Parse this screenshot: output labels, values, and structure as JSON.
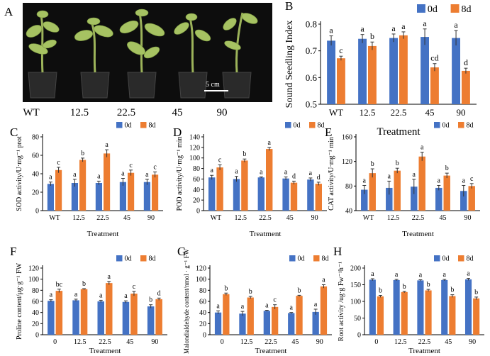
{
  "panel_a": {
    "letter": "A",
    "labels": [
      "WT",
      "12.5",
      "22.5",
      "45",
      "90"
    ],
    "scale": "5 cm"
  },
  "colors": {
    "d0": "#4472c4",
    "d8": "#ed7d31"
  },
  "chart_data": [
    {
      "id": "B",
      "type": "bar",
      "title": "",
      "xlabel": "Treatment",
      "ylabel": "Sound Seedling Index",
      "categories": [
        "WT",
        "12.5",
        "22.5",
        "45",
        "90"
      ],
      "ylim": [
        0.5,
        0.8
      ],
      "yticks": [
        "0.5",
        "0.6",
        "0.7",
        "0.8"
      ],
      "legend": [
        "0d",
        "8d"
      ],
      "legend_position": "top-right",
      "series": [
        {
          "name": "0d",
          "values": [
            0.738,
            0.745,
            0.748,
            0.752,
            0.748
          ],
          "errors": [
            0.018,
            0.016,
            0.015,
            0.03,
            0.028
          ],
          "labels": [
            "a",
            "a",
            "a",
            "a",
            "a"
          ]
        },
        {
          "name": "8d",
          "values": [
            0.672,
            0.718,
            0.758,
            0.638,
            0.625
          ],
          "errors": [
            0.008,
            0.015,
            0.013,
            0.014,
            0.01
          ],
          "labels": [
            "c",
            "b",
            "a",
            "cd",
            "d"
          ]
        }
      ]
    },
    {
      "id": "C",
      "type": "bar",
      "title": "",
      "xlabel": "Treatment",
      "ylabel": "SOD activity/U·mg⁻¹ prot",
      "categories": [
        "WT",
        "12.5",
        "22.5",
        "45",
        "90"
      ],
      "ylim": [
        0,
        80
      ],
      "yticks": [
        "0",
        "20",
        "40",
        "60",
        "80"
      ],
      "legend": [
        "0d",
        "8d"
      ],
      "legend_position": "top-right",
      "series": [
        {
          "name": "0d",
          "values": [
            29,
            30,
            30,
            31,
            31
          ],
          "errors": [
            2,
            4,
            2,
            4,
            3
          ],
          "labels": [
            "a",
            "a",
            "a",
            "a",
            "a"
          ]
        },
        {
          "name": "8d",
          "values": [
            44,
            55,
            62,
            41,
            39
          ],
          "errors": [
            3,
            2,
            4,
            3,
            3
          ],
          "labels": [
            "c",
            "b",
            "a",
            "c",
            "c"
          ]
        }
      ]
    },
    {
      "id": "D",
      "type": "bar",
      "title": "",
      "xlabel": "Treatment",
      "ylabel": "POD activity/U·mg⁻¹ min",
      "categories": [
        "WT",
        "12.5",
        "22.5",
        "45",
        "90"
      ],
      "ylim": [
        0,
        140
      ],
      "yticks": [
        "0",
        "20",
        "40",
        "60",
        "80",
        "100",
        "120",
        "140"
      ],
      "legend": [
        "0d",
        "8d"
      ],
      "legend_position": "top-right",
      "series": [
        {
          "name": "0d",
          "values": [
            63,
            60,
            63,
            61,
            59
          ],
          "errors": [
            4,
            5,
            1,
            3,
            3
          ],
          "labels": [
            "a",
            "a",
            "a",
            "a",
            "a"
          ]
        },
        {
          "name": "8d",
          "values": [
            82,
            95,
            117,
            53,
            51
          ],
          "errors": [
            5,
            3,
            3,
            3,
            3
          ],
          "labels": [
            "c",
            "b",
            "a",
            "d",
            "d"
          ]
        }
      ]
    },
    {
      "id": "E",
      "type": "bar",
      "title": "",
      "xlabel": "Treatment",
      "ylabel": "CAT activity/U·mg⁻¹ min",
      "categories": [
        "WT",
        "12.5",
        "22.5",
        "45",
        "90"
      ],
      "ylim": [
        40,
        160
      ],
      "yticks": [
        "40",
        "80",
        "120",
        "160"
      ],
      "legend": [
        "0d",
        "8d"
      ],
      "legend_position": "top-right",
      "series": [
        {
          "name": "0d",
          "values": [
            74,
            77,
            79,
            77,
            72
          ],
          "errors": [
            7,
            11,
            12,
            4,
            9
          ],
          "labels": [
            "a",
            "a",
            "a",
            "a",
            "a"
          ]
        },
        {
          "name": "8d",
          "values": [
            101,
            105,
            128,
            97,
            80
          ],
          "errors": [
            7,
            4,
            7,
            4,
            4
          ],
          "labels": [
            "b",
            "b",
            "a",
            "b",
            "c"
          ]
        }
      ]
    },
    {
      "id": "F",
      "type": "bar",
      "title": "",
      "xlabel": "Treatment",
      "ylabel": "Proline content/μg·g⁻¹ FW",
      "categories": [
        "0",
        "12.5",
        "22.5",
        "45",
        "90"
      ],
      "ylim": [
        0,
        120
      ],
      "yticks": [
        "0",
        "20",
        "40",
        "60",
        "80",
        "100",
        "120"
      ],
      "legend": [
        "0d",
        "8d"
      ],
      "legend_position": "top-right",
      "series": [
        {
          "name": "0d",
          "values": [
            61,
            62,
            60,
            59,
            51
          ],
          "errors": [
            2,
            2,
            2,
            2,
            3
          ],
          "labels": [
            "a",
            "a",
            "a",
            "a",
            "b"
          ]
        },
        {
          "name": "8d",
          "values": [
            79,
            82,
            93,
            74,
            64
          ],
          "errors": [
            3,
            1,
            3,
            4,
            2
          ],
          "labels": [
            "bc",
            "b",
            "a",
            "c",
            "d"
          ]
        }
      ]
    },
    {
      "id": "G",
      "type": "bar",
      "title": "",
      "xlabel": "Treatment",
      "ylabel": "Malondialdehyde content/nmol · g⁻¹ FW",
      "categories": [
        "0",
        "12.5",
        "22.5",
        "45",
        "90"
      ],
      "ylim": [
        0,
        120
      ],
      "yticks": [
        "0",
        "20",
        "40",
        "60",
        "80",
        "100",
        "120"
      ],
      "legend": [
        "0d",
        "8d"
      ],
      "legend_position": "top-right",
      "series": [
        {
          "name": "0d",
          "values": [
            40,
            38,
            43,
            39,
            41
          ],
          "errors": [
            3,
            4,
            1,
            1,
            5
          ],
          "labels": [
            "a",
            "a",
            "a",
            "a",
            "a"
          ]
        },
        {
          "name": "8d",
          "values": [
            73,
            67,
            50,
            70,
            87
          ],
          "errors": [
            2,
            2,
            4,
            1,
            3
          ],
          "labels": [
            "b",
            "b",
            "c",
            "b",
            "a"
          ]
        }
      ]
    },
    {
      "id": "H",
      "type": "bar",
      "title": "",
      "xlabel": "Treatment",
      "ylabel": "Root activity /ug·g Fw⁻¹h⁻¹",
      "categories": [
        "0",
        "12.5",
        "22.5",
        "45",
        "90"
      ],
      "ylim": [
        0,
        200
      ],
      "yticks": [
        "0",
        "50",
        "100",
        "150",
        "200"
      ],
      "legend": [
        "0d",
        "8d"
      ],
      "legend_position": "top-right",
      "series": [
        {
          "name": "0d",
          "values": [
            165,
            164,
            163,
            164,
            166
          ],
          "errors": [
            3,
            2,
            2,
            2,
            3
          ],
          "labels": [
            "a",
            "a",
            "a",
            "a",
            "a"
          ]
        },
        {
          "name": "8d",
          "values": [
            115,
            128,
            133,
            116,
            109
          ],
          "errors": [
            3,
            2,
            3,
            4,
            4
          ],
          "labels": [
            "b",
            "b",
            "b",
            "b",
            "b"
          ]
        }
      ]
    }
  ]
}
